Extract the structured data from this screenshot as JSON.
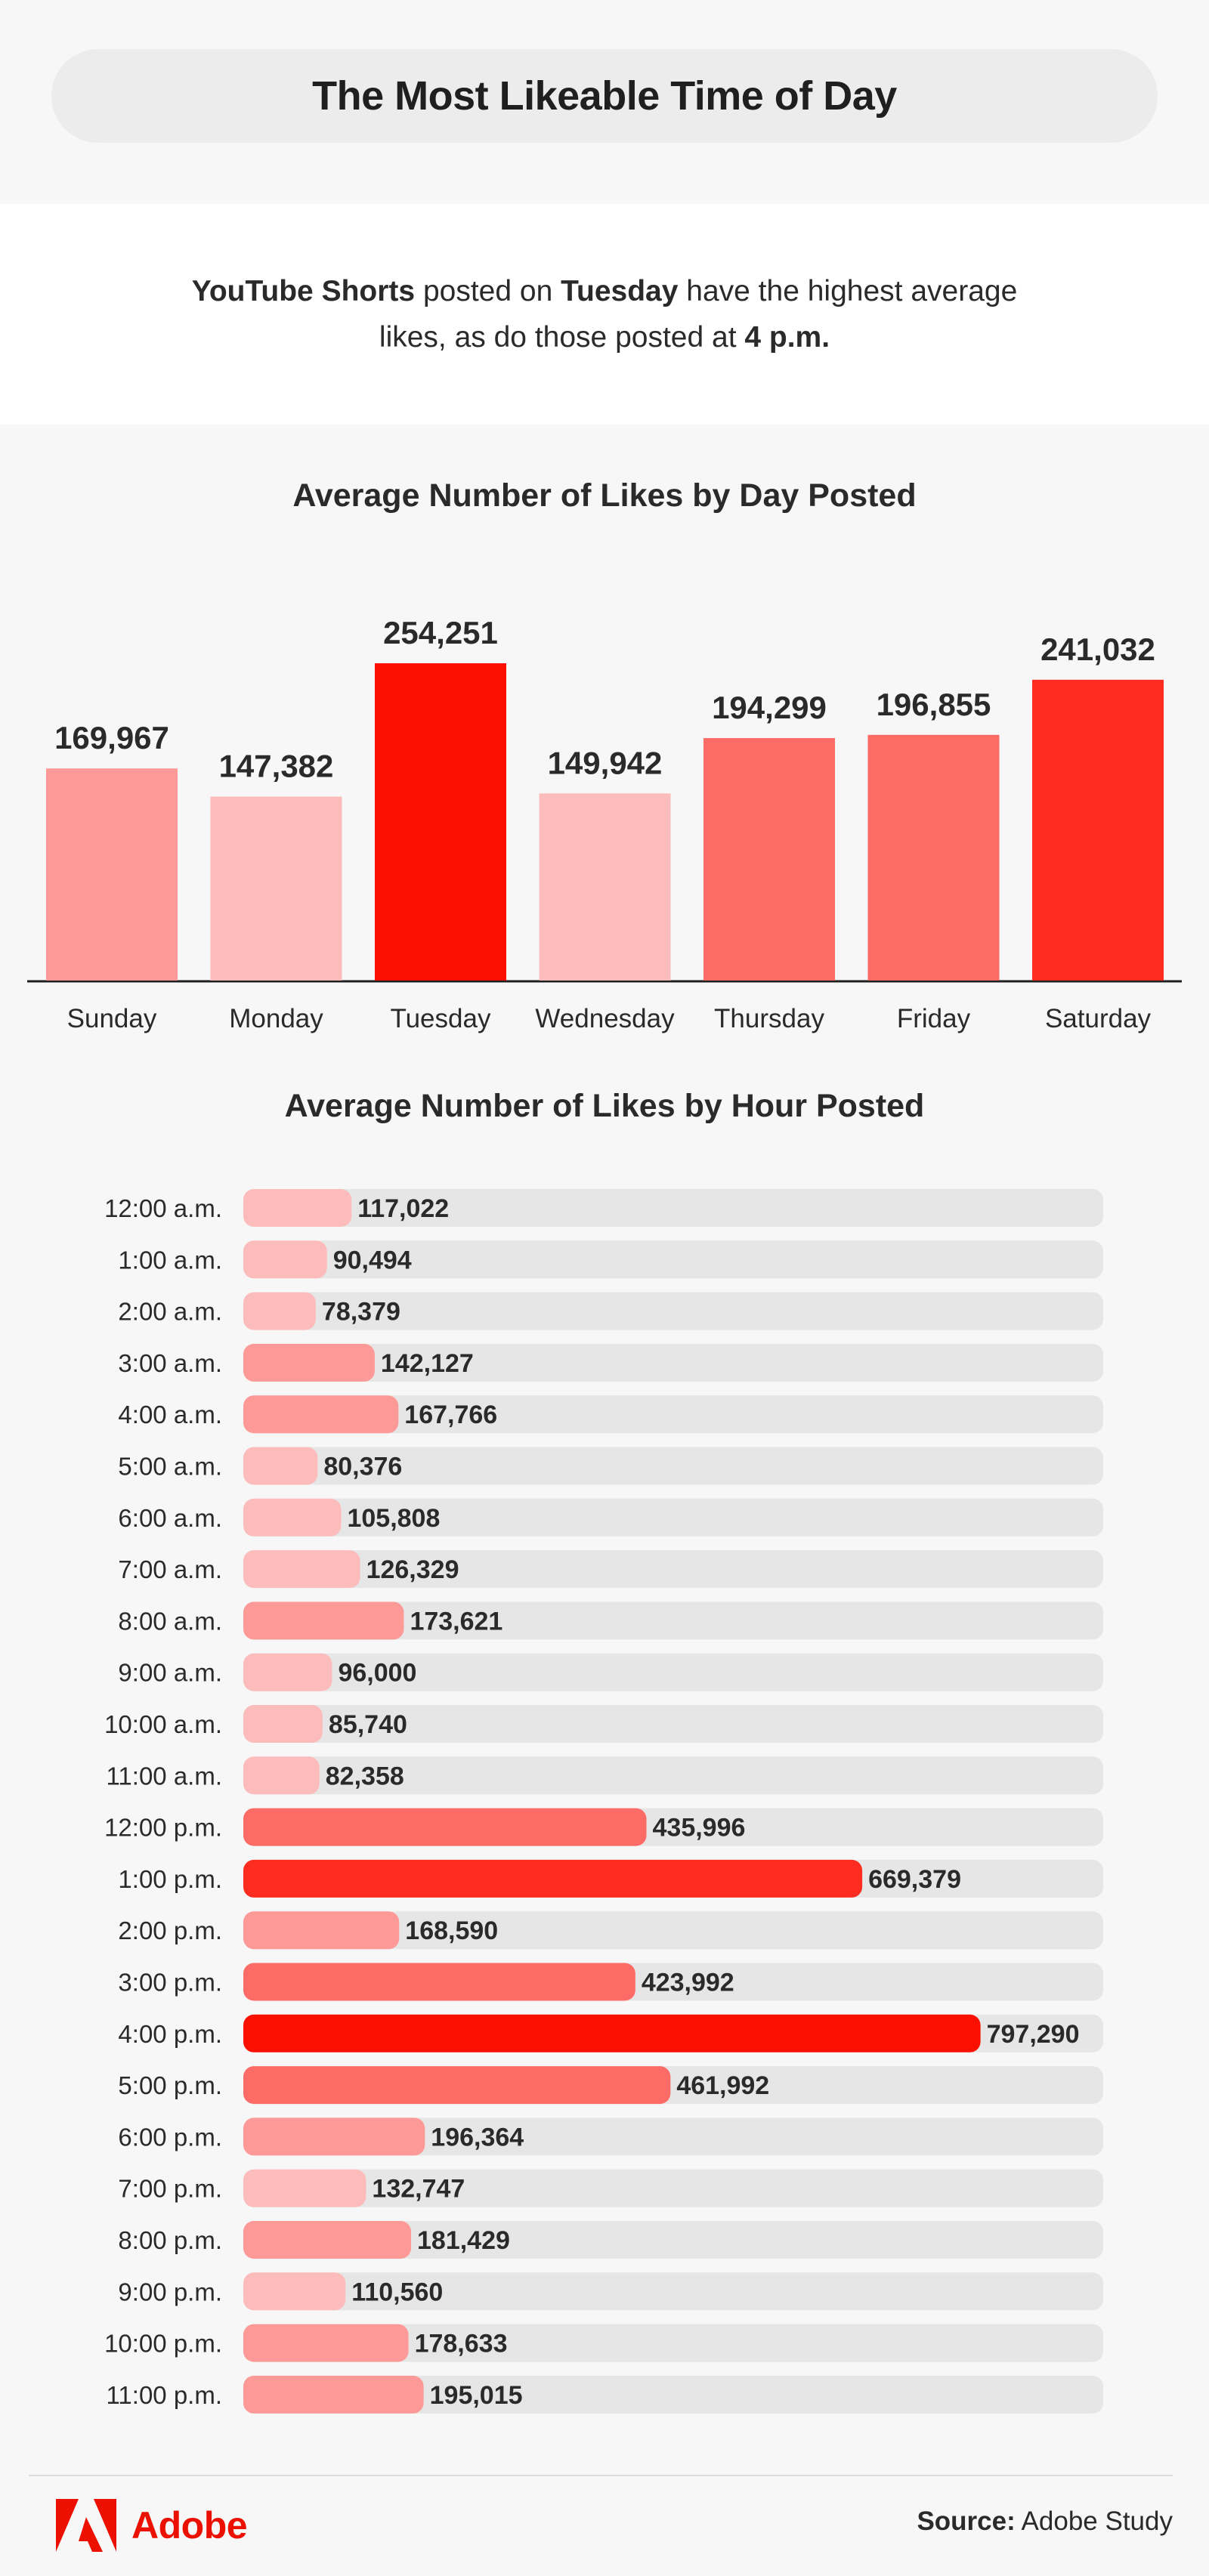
{
  "header": {
    "title": "The Most Likeable Time of Day"
  },
  "intro": {
    "part1": "YouTube Shorts",
    "part2": " posted on ",
    "part3": "Tuesday",
    "part4": " have the highest average likes, as do those posted at ",
    "part5": "4 p.m."
  },
  "colors": {
    "light": "#fdbcbc",
    "mid_light": "#fd9a97",
    "mid": "#fd6b66",
    "strong": "#fd2c20",
    "max": "#fa0f00",
    "track": "#e6e6e6",
    "brand": "#eb1000"
  },
  "chart_data": [
    {
      "type": "bar",
      "title": "Average Number of Likes by Day Posted",
      "categories": [
        "Sunday",
        "Monday",
        "Tuesday",
        "Wednesday",
        "Thursday",
        "Friday",
        "Saturday"
      ],
      "values": [
        169967,
        147382,
        254251,
        149942,
        194299,
        196855,
        241032
      ],
      "value_labels": [
        "169,967",
        "147,382",
        "254,251",
        "149,942",
        "194,299",
        "196,855",
        "241,032"
      ],
      "bar_colors": [
        "#fd9a97",
        "#fdbcbc",
        "#fa0f00",
        "#fdbcbc",
        "#fd6b66",
        "#fd6b66",
        "#fd2c20"
      ],
      "ylim": [
        0,
        254251
      ],
      "grid": false,
      "legend": "none"
    },
    {
      "type": "bar",
      "orientation": "horizontal",
      "title": "Average Number of Likes by Hour Posted",
      "categories": [
        "12:00 a.m.",
        "1:00 a.m.",
        "2:00 a.m.",
        "3:00 a.m.",
        "4:00 a.m.",
        "5:00 a.m.",
        "6:00 a.m.",
        "7:00 a.m.",
        "8:00 a.m.",
        "9:00 a.m.",
        "10:00 a.m.",
        "11:00 a.m.",
        "12:00 p.m.",
        "1:00 p.m.",
        "2:00 p.m.",
        "3:00 p.m.",
        "4:00 p.m.",
        "5:00 p.m.",
        "6:00 p.m.",
        "7:00 p.m.",
        "8:00 p.m.",
        "9:00 p.m.",
        "10:00 p.m.",
        "11:00 p.m."
      ],
      "values": [
        117022,
        90494,
        78379,
        142127,
        167766,
        80376,
        105808,
        126329,
        173621,
        96000,
        85740,
        82358,
        435996,
        669379,
        168590,
        423992,
        797290,
        461992,
        196364,
        132747,
        181429,
        110560,
        178633,
        195015
      ],
      "value_labels": [
        "117,022",
        "90,494",
        "78,379",
        "142,127",
        "167,766",
        "80,376",
        "105,808",
        "126,329",
        "173,621",
        "96,000",
        "85,740",
        "82,358",
        "435,996",
        "669,379",
        "168,590",
        "423,992",
        "797,290",
        "461,992",
        "196,364",
        "132,747",
        "181,429",
        "110,560",
        "178,633",
        "195,015"
      ],
      "bar_colors": [
        "#fdbcbc",
        "#fdbcbc",
        "#fdbcbc",
        "#fd9a97",
        "#fd9a97",
        "#fdbcbc",
        "#fdbcbc",
        "#fdbcbc",
        "#fd9a97",
        "#fdbcbc",
        "#fdbcbc",
        "#fdbcbc",
        "#fd6b66",
        "#fd2c20",
        "#fd9a97",
        "#fd6b66",
        "#fa0f00",
        "#fd6b66",
        "#fd9a97",
        "#fdbcbc",
        "#fd9a97",
        "#fdbcbc",
        "#fd9a97",
        "#fd9a97"
      ],
      "xlim": [
        0,
        930000
      ],
      "grid": false,
      "legend": "none"
    }
  ],
  "footer": {
    "brand": "Adobe",
    "logo_icon": "adobe-logo-icon",
    "source_label": "Source:",
    "source_value": " Adobe Study"
  }
}
